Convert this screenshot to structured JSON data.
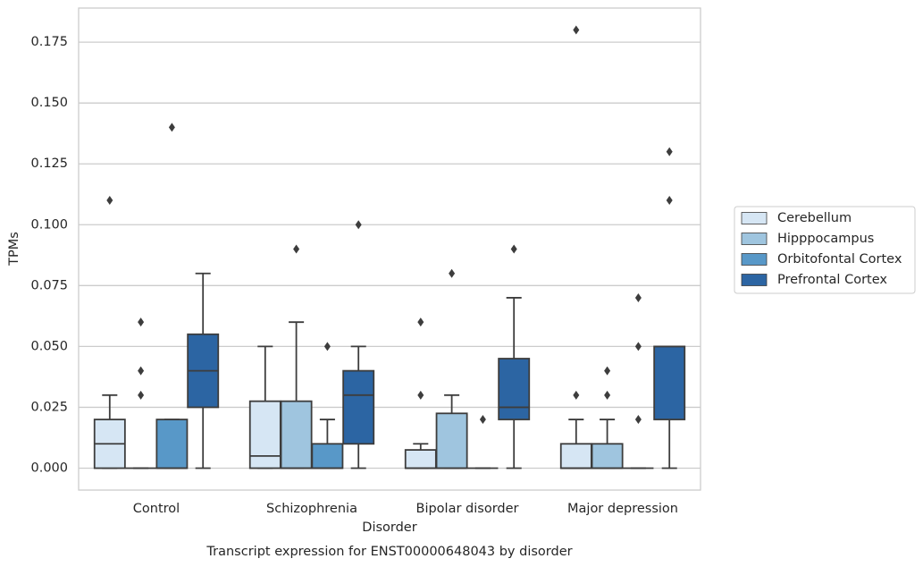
{
  "chart_data": {
    "type": "box",
    "title": "Transcript expression for ENST00000648043 by disorder",
    "xlabel": "Disorder",
    "ylabel": "TPMs",
    "categories": [
      "Control",
      "Schizophrenia",
      "Bipolar disorder",
      "Major depression"
    ],
    "ylim": [
      -0.009,
      0.189
    ],
    "yticks": [
      {
        "value": 0,
        "label": "0.000"
      },
      {
        "value": 0.025,
        "label": "0.025"
      },
      {
        "value": 0.05,
        "label": "0.050"
      },
      {
        "value": 0.075,
        "label": "0.075"
      },
      {
        "value": 0.1,
        "label": "0.100"
      },
      {
        "value": 0.125,
        "label": "0.125"
      },
      {
        "value": 0.15,
        "label": "0.150"
      },
      {
        "value": 0.175,
        "label": "0.175"
      }
    ],
    "grid": true,
    "legend": "right",
    "series": [
      {
        "name": "Cerebellum",
        "color": "#d6e6f4",
        "boxes": [
          {
            "low": 0,
            "q1": 0,
            "median": 0.01,
            "q3": 0.02,
            "high": 0.03,
            "outliers": [
              0.11
            ]
          },
          {
            "low": 0,
            "q1": 0,
            "median": 0.005,
            "q3": 0.0275,
            "high": 0.05,
            "outliers": []
          },
          {
            "low": 0,
            "q1": 0,
            "median": 0,
            "q3": 0.0075,
            "high": 0.01,
            "outliers": [
              0.03,
              0.06
            ]
          },
          {
            "low": 0,
            "q1": 0,
            "median": 0,
            "q3": 0.01,
            "high": 0.02,
            "outliers": [
              0.03,
              0.18
            ]
          }
        ]
      },
      {
        "name": "Hipppocampus",
        "color": "#9fc5df",
        "boxes": [
          {
            "low": 0,
            "q1": 0,
            "median": 0,
            "q3": 0,
            "high": 0,
            "outliers": [
              0.03,
              0.04,
              0.06
            ]
          },
          {
            "low": 0,
            "q1": 0,
            "median": 0,
            "q3": 0.0275,
            "high": 0.06,
            "outliers": [
              0.09
            ]
          },
          {
            "low": 0,
            "q1": 0,
            "median": 0,
            "q3": 0.0225,
            "high": 0.03,
            "outliers": [
              0.08
            ]
          },
          {
            "low": 0,
            "q1": 0,
            "median": 0,
            "q3": 0.01,
            "high": 0.02,
            "outliers": [
              0.03,
              0.04
            ]
          }
        ]
      },
      {
        "name": "Orbitofontal Cortex",
        "color": "#5898c8",
        "boxes": [
          {
            "low": 0,
            "q1": 0,
            "median": 0,
            "q3": 0.02,
            "high": 0.02,
            "outliers": [
              0.14
            ]
          },
          {
            "low": 0,
            "q1": 0,
            "median": 0,
            "q3": 0.01,
            "high": 0.02,
            "outliers": [
              0.05
            ]
          },
          {
            "low": 0,
            "q1": 0,
            "median": 0,
            "q3": 0,
            "high": 0,
            "outliers": [
              0.02
            ]
          },
          {
            "low": 0,
            "q1": 0,
            "median": 0,
            "q3": 0,
            "high": 0,
            "outliers": [
              0.02,
              0.05,
              0.07
            ]
          }
        ]
      },
      {
        "name": "Prefrontal Cortex",
        "color": "#2c65a3",
        "boxes": [
          {
            "low": 0,
            "q1": 0.025,
            "median": 0.04,
            "q3": 0.055,
            "high": 0.08,
            "outliers": []
          },
          {
            "low": 0,
            "q1": 0.01,
            "median": 0.03,
            "q3": 0.04,
            "high": 0.05,
            "outliers": [
              0.1
            ]
          },
          {
            "low": 0,
            "q1": 0.02,
            "median": 0.025,
            "q3": 0.045,
            "high": 0.07,
            "outliers": [
              0.09
            ]
          },
          {
            "low": 0,
            "q1": 0.02,
            "median": 0.05,
            "q3": 0.05,
            "high": 0.05,
            "outliers": [
              0.11,
              0.13
            ]
          }
        ]
      }
    ]
  }
}
